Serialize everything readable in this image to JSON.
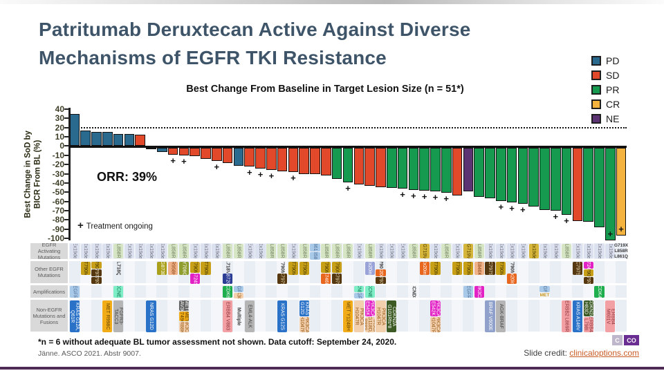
{
  "slide": {
    "title_line1": "Patritumab Deruxtecan Active Against Diverse",
    "title_line2": "Mechanisms of EGFR TKI Resistance",
    "footnote": "*n = 6 without adequate BL tumor assessment not shown. Data cutoff: September 24, 2020.",
    "citation": "Jänne. ASCO 2021. Abstr 9007.",
    "credit_label": "Slide credit: ",
    "credit_link": "clinicaloptions.com",
    "logo_tile1": "C",
    "logo_tile2": "CO"
  },
  "legend": {
    "items": [
      {
        "label": "PD",
        "color": "#2b6a8f"
      },
      {
        "label": "SD",
        "color": "#e2492a"
      },
      {
        "label": "PR",
        "color": "#169a50"
      },
      {
        "label": "CR",
        "color": "#f3b33e"
      },
      {
        "label": "NE",
        "color": "#5c3473"
      }
    ]
  },
  "chart_data": {
    "type": "bar",
    "title": "Best Change From Baseline in Target Lesion Size (n = 51*)",
    "ylabel_line1": "Best Change in SoD by",
    "ylabel_line2": "BICR From BL (%)",
    "ylim": [
      -100,
      40
    ],
    "yticks": [
      40,
      30,
      20,
      10,
      0,
      -10,
      -20,
      -30,
      -40,
      -50,
      -60,
      -70,
      -80,
      -90,
      -100
    ],
    "reference_line_y": 20,
    "orr_label": "ORR: 39%",
    "ongoing_plus": "+",
    "ongoing_text": "Treatment ongoing",
    "bars": [
      {
        "v": 35,
        "s": "PD"
      },
      {
        "v": 17,
        "s": "PD"
      },
      {
        "v": 15,
        "s": "PD"
      },
      {
        "v": 15,
        "s": "PD"
      },
      {
        "v": 13,
        "s": "PD"
      },
      {
        "v": 13,
        "s": "PD"
      },
      {
        "v": 12,
        "s": "SD"
      },
      {
        "v": -1,
        "s": "PD"
      },
      {
        "v": -4,
        "s": "PD"
      },
      {
        "v": -7,
        "s": "SD",
        "p": 1
      },
      {
        "v": -8,
        "s": "SD",
        "p": 1
      },
      {
        "v": -9,
        "s": "SD"
      },
      {
        "v": -12,
        "s": "SD"
      },
      {
        "v": -14,
        "s": "SD",
        "p": 1
      },
      {
        "v": -16,
        "s": "SD"
      },
      {
        "v": -19,
        "s": "PD"
      },
      {
        "v": -20,
        "s": "SD",
        "p": 1
      },
      {
        "v": -22,
        "s": "SD",
        "p": 1
      },
      {
        "v": -24,
        "s": "SD",
        "p": 1
      },
      {
        "v": -25,
        "s": "SD"
      },
      {
        "v": -26,
        "s": "SD",
        "p": 1
      },
      {
        "v": -28,
        "s": "SD"
      },
      {
        "v": -28,
        "s": "SD"
      },
      {
        "v": -30,
        "s": "SD"
      },
      {
        "v": -33,
        "s": "PR"
      },
      {
        "v": -37,
        "s": "PR",
        "p": 1
      },
      {
        "v": -39,
        "s": "SD"
      },
      {
        "v": -41,
        "s": "SD"
      },
      {
        "v": -42,
        "s": "SD"
      },
      {
        "v": -43,
        "s": "PR"
      },
      {
        "v": -44,
        "s": "PR",
        "p": 1
      },
      {
        "v": -45,
        "s": "PR",
        "p": 1
      },
      {
        "v": -46,
        "s": "PR",
        "p": 1
      },
      {
        "v": -47,
        "s": "PR",
        "p": 1
      },
      {
        "v": -48,
        "s": "PR",
        "p": 1
      },
      {
        "v": -51,
        "s": "SD"
      },
      {
        "v": -47,
        "s": "NE"
      },
      {
        "v": -53,
        "s": "PR"
      },
      {
        "v": -54,
        "s": "PR"
      },
      {
        "v": -57,
        "s": "PR",
        "p": 1
      },
      {
        "v": -59,
        "s": "PR",
        "p": 1
      },
      {
        "v": -60,
        "s": "PR",
        "p": 1
      },
      {
        "v": -63,
        "s": "PR"
      },
      {
        "v": -67,
        "s": "PR"
      },
      {
        "v": -68,
        "s": "PR",
        "p": 1
      },
      {
        "v": -72,
        "s": "PR",
        "p": 1
      },
      {
        "v": -79,
        "s": "SD"
      },
      {
        "v": -80,
        "s": "PR"
      },
      {
        "v": -86,
        "s": "PR"
      },
      {
        "v": -100,
        "s": "PR",
        "p": 1,
        "pi": 1
      },
      {
        "v": -95,
        "s": "CR",
        "p": 1,
        "pi": 1
      }
    ]
  },
  "matrix": {
    "row_labels": [
      "EGFR Activating Mutations",
      "Other EGFR Mutations",
      "Amplifications",
      "Non-EGFR Mutations and Fusions"
    ],
    "palette": {
      "ex19": [
        "#dce1f0",
        "#6b6f7e"
      ],
      "l858": [
        "#d6e6c4",
        "#6b7a5a"
      ],
      "gold": [
        "#c7a017",
        "#3f3000"
      ],
      "khaki": [
        "#d6b63a",
        "#4a3c00"
      ],
      "brown": [
        "#55380f",
        "#f5e9c8"
      ],
      "org": [
        "#e8661d",
        "#ffffff"
      ],
      "mag": [
        "#e322c5",
        "#ffffff"
      ],
      "mint": [
        "#7deec6",
        "#0e6e4a"
      ],
      "ltb": [
        "#a9c9e8",
        "#4d6f96"
      ],
      "per": [
        "#9aa3d8",
        "#ffffff"
      ],
      "slate": [
        "#8fa0ca",
        "#ffffff"
      ],
      "blue": [
        "#2a72c8",
        "#ffffff"
      ],
      "bgold": [
        "#f2ac18",
        "#5a3c00"
      ],
      "gray": [
        "#b5b5b5",
        "#3f3f3f"
      ],
      "dgray": [
        "#636363",
        "#ffffff"
      ],
      "sal": [
        "#efb289",
        "#8a4010"
      ],
      "tan": [
        "#f2cfad",
        "#95550f"
      ],
      "oli": [
        "#aaa019",
        "#ffffff"
      ],
      "olg": [
        "#8f9e2e",
        "#ffffff"
      ],
      "navy": [
        "#2c3d96",
        "#ffffff"
      ],
      "pink": [
        "#f2a0a4",
        "#8c3038"
      ],
      "dgrn": [
        "#3c5a23",
        "#ffffff"
      ],
      "grn": [
        "#1fae4e",
        "#ffffff"
      ],
      "txt": [
        "",
        "#3a3a3a"
      ],
      "txth": [
        "",
        "#3a3a3a"
      ],
      "meth": [
        "",
        "#c79516"
      ]
    },
    "columns": [
      {
        "a": [
          [
            "Ex19del",
            "ex19"
          ]
        ],
        "m": [
          [
            "EGFR",
            "ltb"
          ]
        ],
        "n": [
          [
            "KRAS G12A, Q61R",
            "blue"
          ]
        ]
      },
      {
        "a": [
          [
            "Ex19del",
            "ex19"
          ]
        ],
        "e": [
          [
            "T790M",
            "gold"
          ]
        ]
      },
      {
        "a": [
          [
            "Ex19del",
            "ex19"
          ]
        ],
        "e": [
          [
            "T790M",
            "gold"
          ],
          [
            "C797G",
            "brown"
          ],
          [
            "C797S",
            "brown"
          ]
        ]
      },
      {
        "a": [
          [
            "Ex19del",
            "ex19"
          ]
        ],
        "n": [
          [
            "MET R998C",
            "bgold"
          ]
        ]
      },
      {
        "a": [
          [
            "L858R",
            "l858"
          ]
        ],
        "e": [
          [
            "L718Q",
            "txt"
          ]
        ],
        "m": [
          [
            "CCNE1",
            "mint"
          ]
        ],
        "n": [
          [
            "FGFR3-TACC3",
            "gray"
          ]
        ]
      },
      {
        "a": [
          [
            "Ex19del",
            "ex19"
          ]
        ]
      },
      {
        "a": [
          [
            "Ex19del",
            "ex19"
          ]
        ]
      },
      {
        "a": [
          [
            "Ex19del",
            "ex19"
          ]
        ],
        "n": [
          [
            "NRAS G12D",
            "blue"
          ]
        ]
      },
      {
        "a": [
          [
            "Ex19del",
            "ex19"
          ]
        ],
        "e": [
          [
            "G873E",
            "oli"
          ]
        ]
      },
      {
        "a": [
          [
            "L858R",
            "l858"
          ]
        ],
        "e": [
          [
            "R958H",
            "sal"
          ]
        ]
      },
      {
        "a": [
          [
            "L858R",
            "l858"
          ]
        ],
        "e": [
          [
            "Y706C",
            "olg"
          ]
        ],
        "n": [
          [
            "MET-CAV3G",
            "dgray"
          ],
          [
            "MET R749G",
            "bgold"
          ],
          [
            "PIK3CA R88K",
            "tan"
          ]
        ]
      },
      {
        "a": [
          [
            "Ex19del",
            "ex19"
          ]
        ],
        "e": [
          [
            "T790M",
            "gold"
          ],
          [
            "G724S",
            "mag"
          ]
        ]
      },
      {
        "a": [
          [
            "Ex19del",
            "ex19"
          ]
        ],
        "e": [
          [
            "T790M",
            "gold"
          ]
        ]
      },
      {
        "a": [
          [
            "Ex19del",
            "ex19"
          ]
        ]
      },
      {
        "a": [
          [
            "L858R",
            "l858"
          ]
        ],
        "e": [
          [
            "L718V",
            "txt"
          ],
          [
            "A872G",
            "navy"
          ]
        ],
        "m": [
          [
            "CDK6",
            "grn"
          ]
        ],
        "n": [
          [
            "ERBB4 V883",
            "pink"
          ]
        ]
      },
      {
        "a": [
          [
            "L858R",
            "l858"
          ]
        ],
        "m": [
          [
            "EGFR",
            "ltb"
          ],
          [
            "PIK3CA",
            "tan"
          ]
        ],
        "n": [
          [
            "Multiple",
            "txt"
          ]
        ]
      },
      {
        "a": [
          [
            "Ex19del",
            "ex19"
          ]
        ],
        "n": [
          [
            "EML4-ALK",
            "gray"
          ]
        ]
      },
      {
        "a": [
          [
            "Ex19del",
            "ex19"
          ]
        ]
      },
      {
        "a": [
          [
            "L858R",
            "l858"
          ]
        ]
      },
      {
        "a": [
          [
            "L858R",
            "l858"
          ]
        ],
        "e": [
          [
            "T790M",
            "txt"
          ],
          [
            "C797S",
            "brown"
          ]
        ],
        "n": [
          [
            "KRAS G12S",
            "blue"
          ]
        ]
      },
      {
        "a": [
          [
            "Ex19del",
            "ex19"
          ]
        ],
        "e": [
          [
            "T790M",
            "gold"
          ]
        ]
      },
      {
        "a": [
          [
            "L858R",
            "l858"
          ]
        ],
        "e": [
          [
            "T790M",
            "gold"
          ]
        ],
        "n": [
          [
            "KRAS G12D",
            "blue"
          ],
          [
            "PIK3CA H1047R",
            "tan"
          ]
        ]
      },
      {
        "a": [
          [
            "L861Q",
            "ltb"
          ],
          [
            "L858R",
            "ltb"
          ]
        ]
      },
      {
        "a": [
          [
            "L858R",
            "l858"
          ]
        ],
        "e": [
          [
            "T790M",
            "gold"
          ],
          [
            "E746K",
            "org"
          ]
        ]
      },
      {
        "a": [
          [
            "L858R",
            "l858"
          ]
        ],
        "e": [
          [
            "T790M",
            "gold"
          ],
          [
            "C797S",
            "brown"
          ]
        ]
      },
      {
        "a": [
          [
            "L858R",
            "l858"
          ]
        ],
        "n": [
          [
            "MET Y1248H",
            "bgold"
          ]
        ]
      },
      {
        "a": [
          [
            "Ex19del",
            "ex19"
          ]
        ],
        "m": [
          [
            "CCNE1",
            "mint"
          ],
          [
            "EGFR",
            "ltb"
          ]
        ],
        "n": [
          [
            "PIK3CA H1047R",
            "tan"
          ]
        ]
      },
      {
        "a": [
          [
            "L858R",
            "l858"
          ]
        ],
        "e": [
          [
            "Ex20ins",
            "per"
          ]
        ],
        "m": [
          [
            "CCNE1",
            "mint"
          ]
        ],
        "n": [
          [
            "PIK3CA E545K",
            "mag"
          ],
          [
            "PIK3CA G118D, R88S",
            "tan"
          ]
        ]
      },
      {
        "a": [
          [
            "Ex19del",
            "ex19"
          ]
        ],
        "e": [
          [
            "T790M",
            "txt"
          ],
          [
            "Ex20ins",
            "org"
          ],
          [
            "C797S",
            "brown"
          ]
        ],
        "n": [
          [
            "PIK3CA H1047R",
            "tan"
          ]
        ]
      },
      {
        "a": [
          [
            "Ex19del",
            "ex19"
          ]
        ],
        "n": [
          [
            "CDKN2A G101Rfs*8",
            "dgrn"
          ]
        ]
      },
      {
        "a": [
          [
            "Ex19del",
            "ex19"
          ]
        ]
      },
      {
        "a": [
          [
            "L858R",
            "l858"
          ]
        ],
        "m": [
          [
            "CCND3",
            "txt"
          ]
        ]
      },
      {
        "a": [
          [
            "G719V",
            "khaki"
          ]
        ],
        "e": [
          [
            "Ex20ins",
            "org"
          ]
        ]
      },
      {
        "a": [
          [
            "Ex19del",
            "ex19"
          ]
        ],
        "e": [
          [
            "T790M",
            "gold"
          ]
        ],
        "n": [
          [
            "PIK3CA E542K",
            "mag"
          ],
          [
            "PIK3CA H1047R",
            "tan"
          ]
        ]
      },
      {
        "a": [
          [
            "L858R",
            "l858"
          ]
        ]
      },
      {
        "a": [
          [
            "Ex19del",
            "ex19"
          ]
        ],
        "e": [
          [
            "T790M",
            "gold"
          ]
        ]
      },
      {
        "a": [
          [
            "G719V",
            "khaki"
          ]
        ],
        "e": [
          [
            "T790M",
            "gold"
          ]
        ],
        "m": [
          [
            "EGFR",
            "ltb"
          ]
        ]
      },
      {
        "a": [
          [
            "L858R",
            "l858"
          ]
        ],
        "e": [
          [
            "E846K",
            "sal"
          ]
        ],
        "m": [
          [
            "PIK3CA",
            "mag"
          ]
        ]
      },
      {
        "a": [
          [
            "Ex19del",
            "ex19"
          ]
        ],
        "e": [
          [
            "C797S",
            "brown"
          ]
        ],
        "n": [
          [
            "BRAF V600E",
            "slate"
          ]
        ]
      },
      {
        "a": [
          [
            "Ex19del",
            "ex19"
          ]
        ],
        "e": [
          [
            "T790M",
            "gold"
          ]
        ],
        "n": [
          [
            "AGK-BRAF",
            "gray"
          ]
        ]
      },
      {
        "a": [
          [
            "Ex19del",
            "ex19"
          ]
        ],
        "e": [
          [
            "T790M",
            "txt"
          ],
          [
            "Ex20ins",
            "org"
          ]
        ]
      },
      {
        "a": [
          [
            "Ex19del",
            "ex19"
          ]
        ]
      },
      {
        "a": [
          [
            "Ex19del",
            "khaki"
          ]
        ]
      },
      {
        "a": [
          [
            "Ex19del",
            "ex19"
          ]
        ],
        "m": [
          [
            "EGFR",
            "ltb"
          ],
          [
            "MET",
            "meth"
          ]
        ]
      },
      {
        "a": [
          [
            "Ex19del",
            "ex19"
          ]
        ]
      },
      {
        "a": [
          [
            "L858R",
            "l858"
          ]
        ],
        "n": [
          [
            "ERBB2 L869R",
            "pink"
          ]
        ]
      },
      {
        "a": [
          [
            "Ex19del",
            "ex19"
          ]
        ],
        "e": [
          [
            "C797S",
            "brown"
          ]
        ],
        "n": [
          [
            "KRAS A146V",
            "blue"
          ]
        ]
      },
      {
        "a": [
          [
            "Ex19del",
            "ex19"
          ]
        ],
        "e": [
          [
            "G724S",
            "mag"
          ],
          [
            "T790M",
            "gold"
          ],
          [
            "C797S",
            "brown"
          ]
        ],
        "n": [
          [
            "CDKN2A H83D",
            "dgrn"
          ],
          [
            "ERBB4 L798I",
            "pink"
          ]
        ]
      },
      {
        "a": [
          [
            "Ex19del",
            "ex19"
          ]
        ],
        "m": [
          [
            "CDK4",
            "grn"
          ]
        ]
      },
      {
        "a": [
          [
            "Ex19del",
            "ex19"
          ]
        ],
        "n": [
          [
            "ERBB4 M601V",
            "pink"
          ]
        ]
      },
      {
        "a": [
          [
            "G719X",
            "txth"
          ],
          [
            "L858R",
            "txth"
          ],
          [
            "L861Q",
            "txth"
          ]
        ]
      }
    ]
  }
}
